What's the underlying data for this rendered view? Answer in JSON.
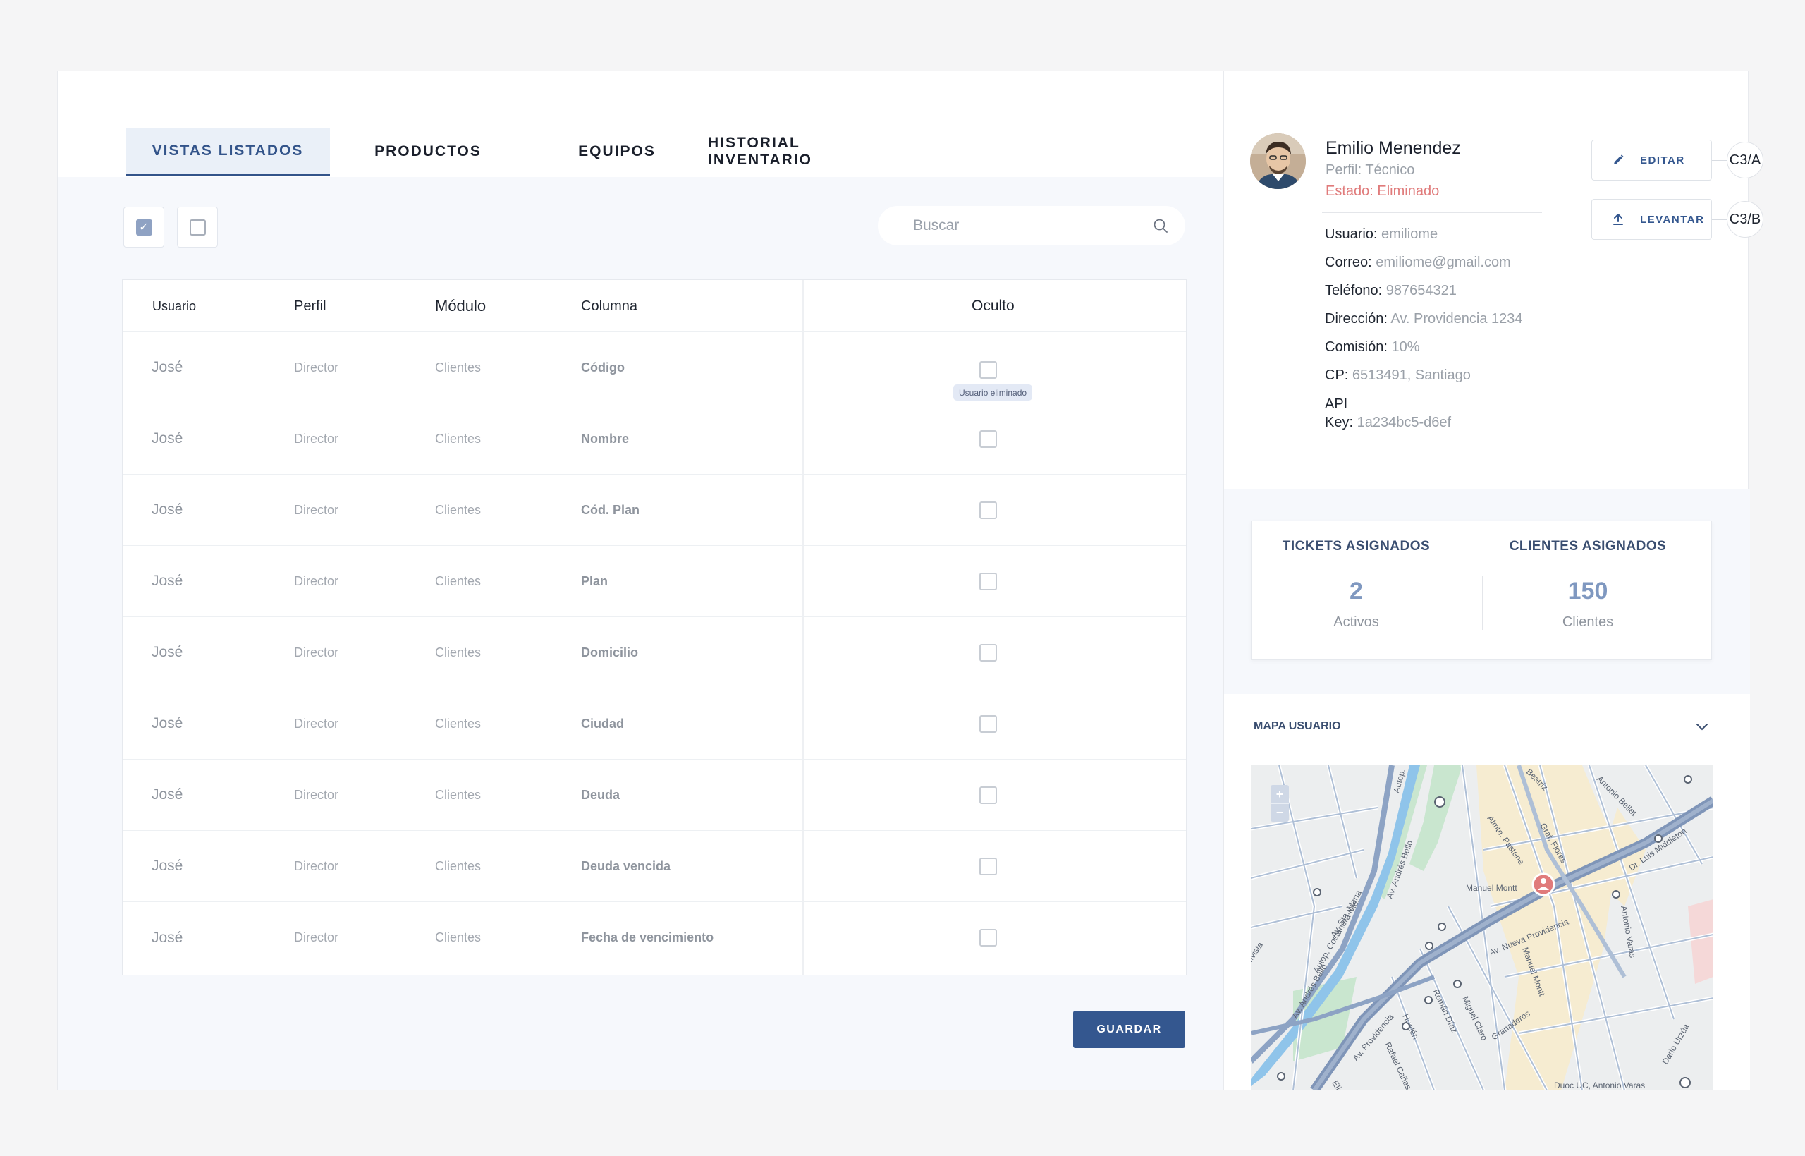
{
  "tabs": [
    {
      "label": "VISTAS LISTADOS",
      "active": true
    },
    {
      "label": "PRODUCTOS",
      "active": false
    },
    {
      "label": "EQUIPOS",
      "active": false
    },
    {
      "label": "HISTORIAL INVENTARIO",
      "active": false
    }
  ],
  "toolbar": {
    "select_all_checked": true,
    "search_placeholder": "Buscar"
  },
  "table": {
    "headers": {
      "usuario": "Usuario",
      "perfil": "Perfil",
      "modulo": "Módulo",
      "columna": "Columna",
      "oculto": "Oculto"
    },
    "rows": [
      {
        "usuario": "José",
        "perfil": "Director",
        "modulo": "Clientes",
        "columna": "Código"
      },
      {
        "usuario": "José",
        "perfil": "Director",
        "modulo": "Clientes",
        "columna": "Nombre"
      },
      {
        "usuario": "José",
        "perfil": "Director",
        "modulo": "Clientes",
        "columna": "Cód. Plan"
      },
      {
        "usuario": "José",
        "perfil": "Director",
        "modulo": "Clientes",
        "columna": "Plan"
      },
      {
        "usuario": "José",
        "perfil": "Director",
        "modulo": "Clientes",
        "columna": "Domicilio"
      },
      {
        "usuario": "José",
        "perfil": "Director",
        "modulo": "Clientes",
        "columna": "Ciudad"
      },
      {
        "usuario": "José",
        "perfil": "Director",
        "modulo": "Clientes",
        "columna": "Deuda"
      },
      {
        "usuario": "José",
        "perfil": "Director",
        "modulo": "Clientes",
        "columna": "Deuda vencida"
      },
      {
        "usuario": "José",
        "perfil": "Director",
        "modulo": "Clientes",
        "columna": "Fecha de vencimiento"
      }
    ],
    "tooltip": "Usuario eliminado"
  },
  "save_label": "GUARDAR",
  "profile": {
    "name": "Emilio Menendez",
    "perfil": "Perfil: Técnico",
    "estado_label": "Estado:",
    "estado_value": "Eliminado",
    "fields": [
      {
        "label": "Usuario:",
        "value": "emiliome"
      },
      {
        "label": "Correo:",
        "value": "emiliome@gmail.com"
      },
      {
        "label": "Teléfono:",
        "value": "987654321"
      },
      {
        "label": "Dirección:",
        "value": "Av. Providencia 1234"
      },
      {
        "label": "Comisión:",
        "value": "10%"
      },
      {
        "label": "CP:",
        "value": "6513491, Santiago"
      }
    ],
    "api_label_1": "API",
    "api_label_2": "Key:",
    "api_value": "1a234bc5-d6ef"
  },
  "actions": {
    "edit_label": "EDITAR",
    "edit_tag": "C3/A",
    "raise_label": "LEVANTAR",
    "raise_tag": "C3/B"
  },
  "stats": {
    "tickets_title": "TICKETS ASIGNADOS",
    "tickets_value": "2",
    "tickets_sub": "Activos",
    "clients_title": "CLIENTES ASIGNADOS",
    "clients_value": "150",
    "clients_sub": "Clientes"
  },
  "map": {
    "title": "MAPA USUARIO",
    "zoom_in": "+",
    "zoom_out": "−",
    "streets": [
      "Autop. Costanera Nte.",
      "Av. Providencia",
      "Av. Nueva Providencia",
      "Av. Andrés Bello",
      "Av. Sta. María",
      "Manuel Montt",
      "Antonio Varas",
      "Antonio Bellet",
      "Dr. Luis Middleton",
      "Graf. Flores",
      "Almte. Pastene",
      "Román Díaz",
      "Miguel Claro",
      "Rafael Cañas",
      "Huelén",
      "Granaderos",
      "Beatriz",
      "Eliodoro",
      "Dario Urzúa",
      "Duoc UC, Antonio Varas",
      "Autop."
    ],
    "place_label": "Manuel Montt",
    "colors": {
      "road": "#aebfd6",
      "major_road": "#7f95b8",
      "park": "#c9e6cf",
      "river": "#8fc4ea",
      "zone": "#f6ecd1"
    }
  }
}
